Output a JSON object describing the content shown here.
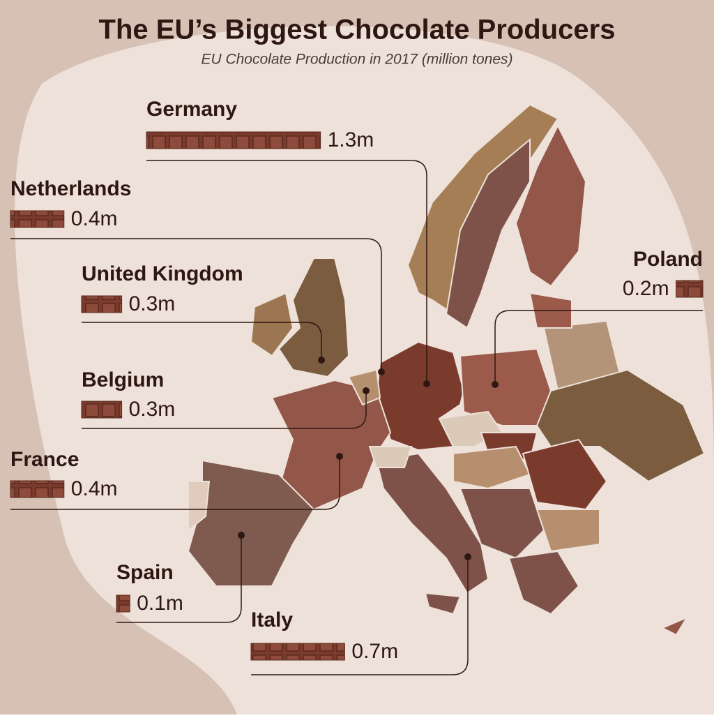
{
  "chart_data": {
    "type": "bar",
    "title": "The EU’s Biggest Chocolate Producers",
    "subtitle": "EU Chocolate Production in 2017 (million tones)",
    "categories": [
      "Germany",
      "Netherlands",
      "United Kingdom",
      "Belgium",
      "France",
      "Spain",
      "Italy",
      "Poland"
    ],
    "values": [
      1.3,
      0.4,
      0.3,
      0.3,
      0.4,
      0.1,
      0.7,
      0.2
    ],
    "value_labels": [
      "1.3m",
      "0.4m",
      "0.3m",
      "0.3m",
      "0.4m",
      "0.1m",
      "0.7m",
      "0.2m"
    ],
    "color": "#7a3a2c"
  }
}
